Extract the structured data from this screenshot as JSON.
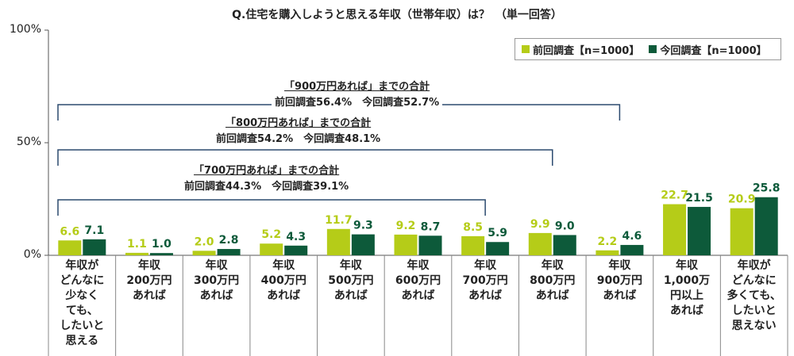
{
  "title": "Q.住宅を購入しようと思える年収（世帯年収）は？　（単一回答）",
  "colors": {
    "prev": "#b5cc18",
    "curr": "#0d5a3a",
    "bracket": "#2b4a6f"
  },
  "legend": {
    "prev": "前回調査【n=1000】",
    "curr": "今回調査【n=1000】"
  },
  "notes": [
    {
      "head": "「900万円あれば」までの合計",
      "line": "前回調査56.4%　今回調査52.7%"
    },
    {
      "head": "「800万円あれば」までの合計",
      "line": "前回調査54.2%　今回調査48.1%"
    },
    {
      "head": "「700万円あれば」までの合計",
      "line": "前回調査44.3%　今回調査39.1%"
    }
  ],
  "chart_data": {
    "type": "bar",
    "title": "Q.住宅を購入しようと思える年収（世帯年収）は？　（単一回答）",
    "categories": [
      "年収が\nどんなに\n少なく\nても、\nしたいと\n思える",
      "年収\n200万円\nあれば",
      "年収\n300万円\nあれば",
      "年収\n400万円\nあれば",
      "年収\n500万円\nあれば",
      "年収\n600万円\nあれば",
      "年収\n700万円\nあれば",
      "年収\n800万円\nあれば",
      "年収\n900万円\nあれば",
      "年収\n1,000万\n円以上\nあれば",
      "年収が\nどんなに\n多くても、\nしたいと\n思えない"
    ],
    "series": [
      {
        "name": "前回調査【n=1000】",
        "values": [
          6.6,
          1.1,
          2.0,
          5.2,
          11.7,
          9.2,
          8.5,
          9.9,
          2.2,
          22.7,
          20.9
        ]
      },
      {
        "name": "今回調査【n=1000】",
        "values": [
          7.1,
          1.0,
          2.8,
          4.3,
          9.3,
          8.7,
          5.9,
          9.0,
          4.6,
          21.5,
          25.8
        ]
      }
    ],
    "value_labels": {
      "prev": [
        "6.6",
        "1.1",
        "2.0",
        "5.2",
        "11.7",
        "9.2",
        "8.5",
        "9.9",
        "2.2",
        "22.7",
        "20.9"
      ],
      "curr": [
        "7.1",
        "1.0",
        "2.8",
        "4.3",
        "9.3",
        "8.7",
        "5.9",
        "9.0",
        "4.6",
        "21.5",
        "25.8"
      ]
    },
    "yticks": [
      "100%",
      "50%",
      "0%"
    ],
    "ylim": [
      0,
      100
    ],
    "grid": false,
    "legend_position": "top-right"
  }
}
